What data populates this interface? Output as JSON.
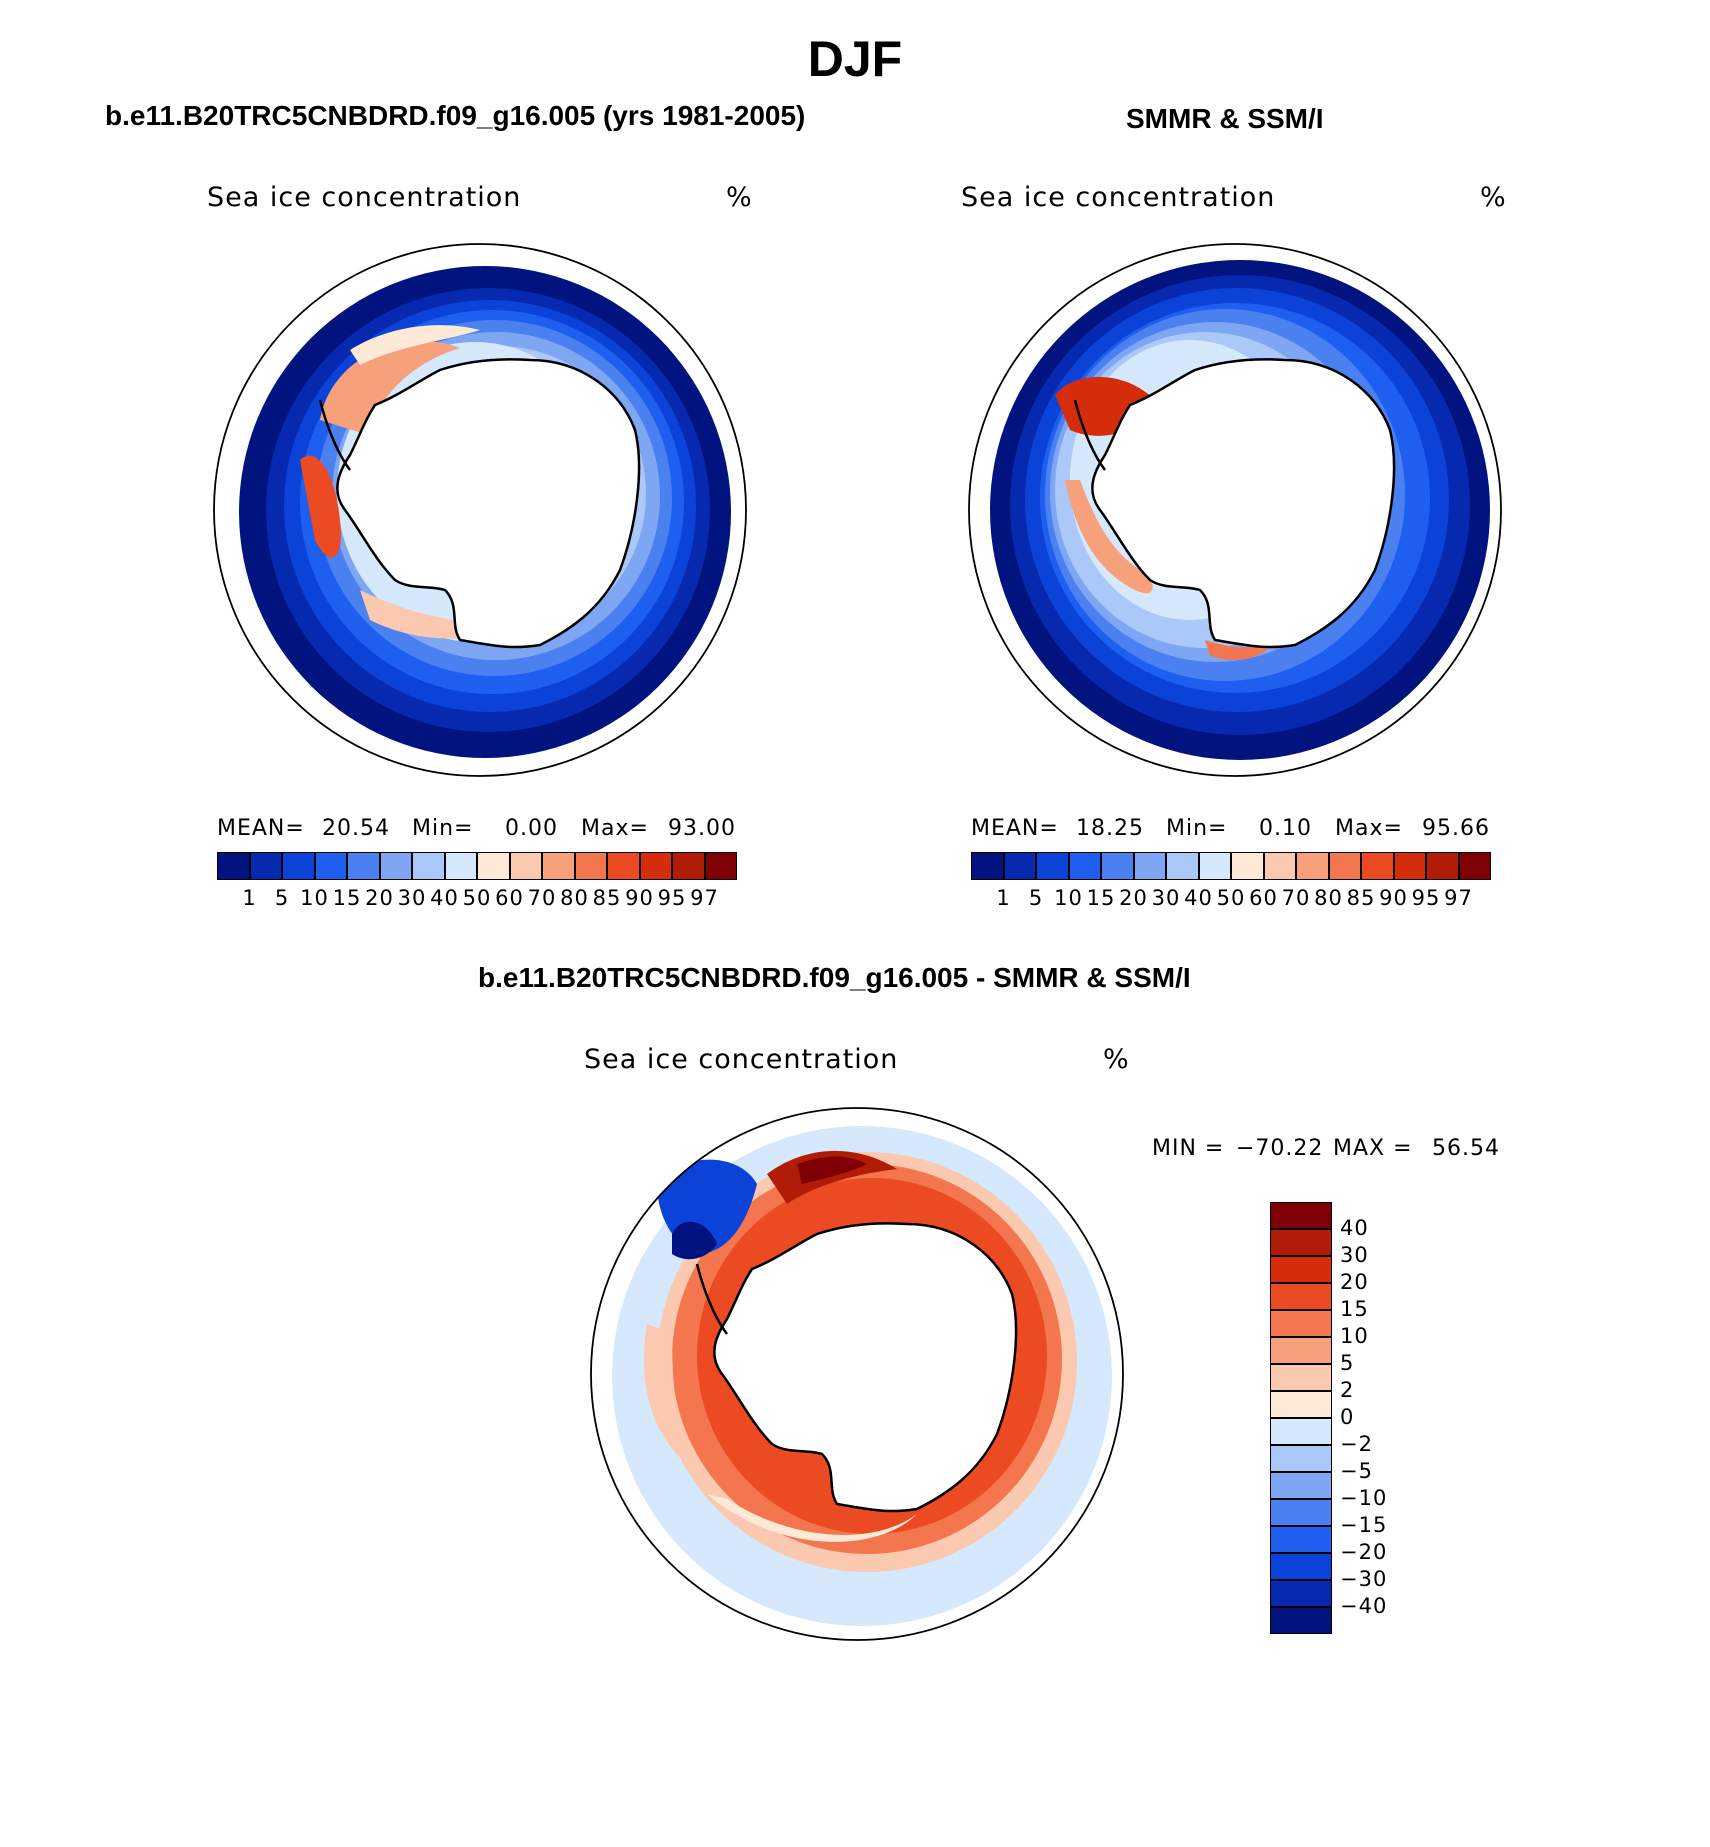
{
  "title": "DJF",
  "panels": [
    {
      "title": "b.e11.B20TRC5CNBDRD.f09_g16.005 (yrs 1981-2005)",
      "variable": "Sea ice concentration",
      "unit": "%",
      "stats": {
        "mean_label": "MEAN=",
        "mean": "20.54",
        "min_label": "Min=",
        "min": "0.00",
        "max_label": "Max=",
        "max": "93.00"
      }
    },
    {
      "title": "SMMR & SSM/I",
      "variable": "Sea ice concentration",
      "unit": "%",
      "stats": {
        "mean_label": "MEAN=",
        "mean": "18.25",
        "min_label": "Min=",
        "min": "0.10",
        "max_label": "Max=",
        "max": "95.66"
      }
    },
    {
      "title": "b.e11.B20TRC5CNBDRD.f09_g16.005 - SMMR & SSM/I",
      "variable": "Sea ice concentration",
      "unit": "%",
      "stats": {
        "min_label": "MIN =",
        "min": "−70.22",
        "max_label": "MAX =",
        "max": "56.54"
      }
    }
  ],
  "colorbar_abs": {
    "levels": [
      "1",
      "5",
      "10",
      "15",
      "20",
      "30",
      "40",
      "50",
      "60",
      "70",
      "80",
      "85",
      "90",
      "95",
      "97"
    ],
    "colors": [
      "#00137f",
      "#0629b0",
      "#0b43d8",
      "#1f5fef",
      "#4a80f0",
      "#7ea6f3",
      "#aac8f8",
      "#d6e8fb",
      "#fde9d6",
      "#fbc8b0",
      "#f7a07c",
      "#f3764e",
      "#ec4a22",
      "#d52c0c",
      "#b01c08",
      "#7f0004"
    ]
  },
  "colorbar_diff": {
    "levels": [
      "40",
      "30",
      "20",
      "15",
      "10",
      "5",
      "2",
      "0",
      "−2",
      "−5",
      "−10",
      "−15",
      "−20",
      "−30",
      "−40"
    ],
    "colors": [
      "#7f0004",
      "#b01c08",
      "#d52c0c",
      "#ec4a22",
      "#f3764e",
      "#f7a07c",
      "#fbc8b0",
      "#fde9d6",
      "#d6e8fb",
      "#aac8f8",
      "#7ea6f3",
      "#4a80f0",
      "#1f5fef",
      "#0b43d8",
      "#0629b0",
      "#00137f"
    ]
  }
}
